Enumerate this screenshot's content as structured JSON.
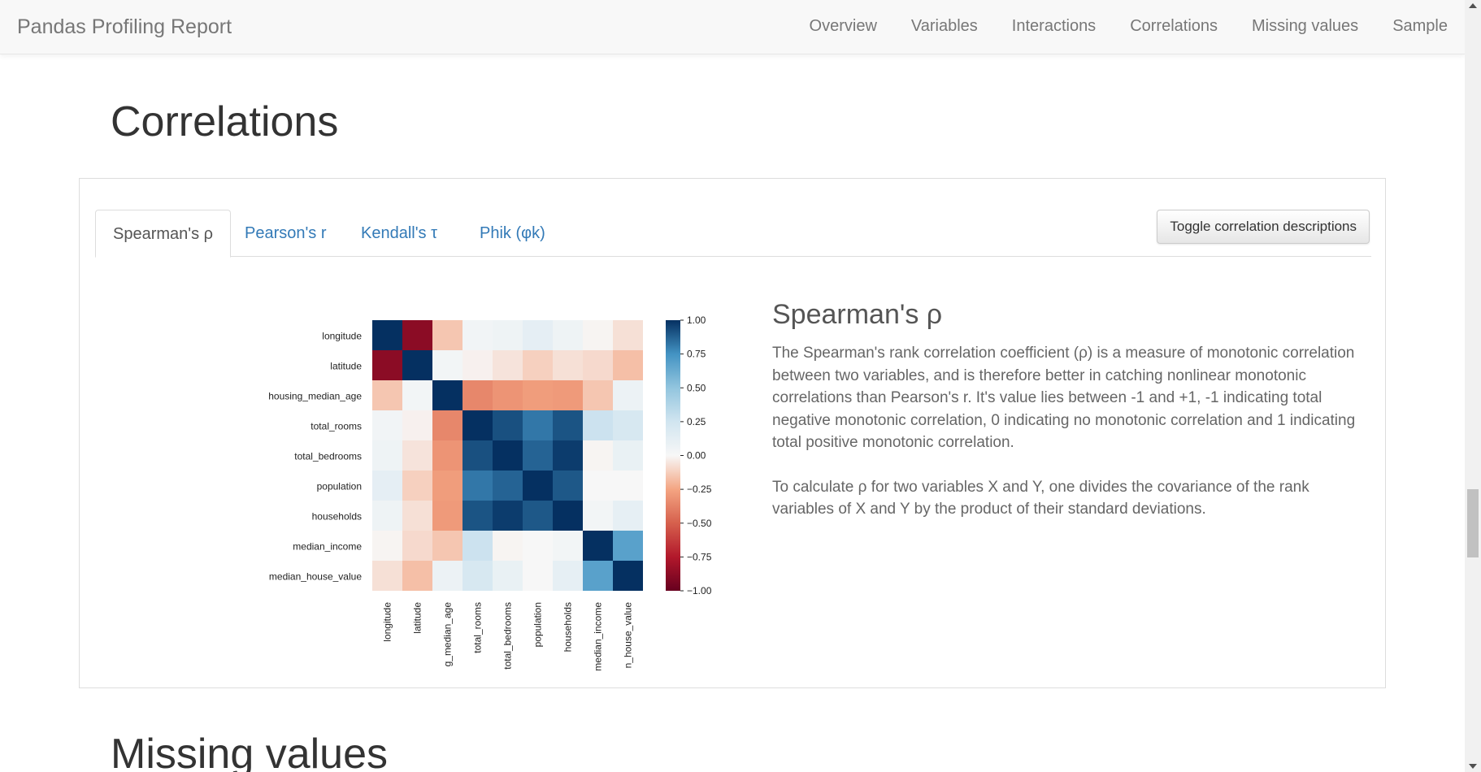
{
  "navbar": {
    "brand": "Pandas Profiling Report",
    "links": [
      "Overview",
      "Variables",
      "Interactions",
      "Correlations",
      "Missing values",
      "Sample"
    ]
  },
  "correlations_title": "Correlations",
  "tabs": [
    "Spearman's ρ",
    "Pearson's r",
    "Kendall's τ",
    "Phik (φk)"
  ],
  "toggle_button": "Toggle correlation descriptions",
  "description": {
    "title": "Spearman's ρ",
    "p1": "The Spearman's rank correlation coefficient (ρ) is a measure of monotonic correlation between two variables, and is therefore better in catching nonlinear monotonic correlations than Pearson's r. It's value lies between -1 and +1, -1 indicating total negative monotonic correlation, 0 indicating no monotonic correlation and 1 indicating total positive monotonic correlation.",
    "p2": "To calculate ρ for two variables X and Y, one divides the covariance of the rank variables of X and Y by the product of their standard deviations."
  },
  "missing_title": "Missing values",
  "chart_data": {
    "type": "heatmap",
    "row_labels": [
      "longitude",
      "latitude",
      "housing_median_age",
      "total_rooms",
      "total_bedrooms",
      "population",
      "households",
      "median_income",
      "median_house_value"
    ],
    "column_labels": [
      "longitude",
      "latitude",
      "g_median_age",
      "total_rooms",
      "total_bedrooms",
      "population",
      "households",
      "median_income",
      "n_house_value"
    ],
    "colorbar_ticks": [
      "1.00",
      "0.75",
      "0.50",
      "0.25",
      "0.00",
      "−0.25",
      "−0.50",
      "−0.75",
      "−1.00"
    ],
    "vmin": -1,
    "vmax": 1,
    "values": [
      [
        1.0,
        -0.88,
        -0.15,
        0.04,
        0.06,
        0.12,
        0.06,
        -0.01,
        -0.07
      ],
      [
        -0.88,
        1.0,
        0.03,
        -0.02,
        -0.06,
        -0.12,
        -0.07,
        -0.09,
        -0.17
      ],
      [
        -0.15,
        0.03,
        1.0,
        -0.36,
        -0.31,
        -0.28,
        -0.29,
        -0.15,
        0.07
      ],
      [
        0.04,
        -0.02,
        -0.36,
        1.0,
        0.92,
        0.82,
        0.91,
        0.27,
        0.21
      ],
      [
        0.06,
        -0.06,
        -0.31,
        0.92,
        1.0,
        0.87,
        0.97,
        -0.01,
        0.09
      ],
      [
        0.12,
        -0.12,
        -0.28,
        0.82,
        0.87,
        1.0,
        0.9,
        0.0,
        0.0
      ],
      [
        0.06,
        -0.07,
        -0.29,
        0.91,
        0.97,
        0.9,
        1.0,
        0.03,
        0.11
      ],
      [
        -0.01,
        -0.09,
        -0.15,
        0.27,
        -0.01,
        0.0,
        0.03,
        1.0,
        0.68
      ],
      [
        -0.07,
        -0.17,
        0.07,
        0.21,
        0.09,
        0.0,
        0.11,
        0.68,
        1.0
      ]
    ]
  }
}
